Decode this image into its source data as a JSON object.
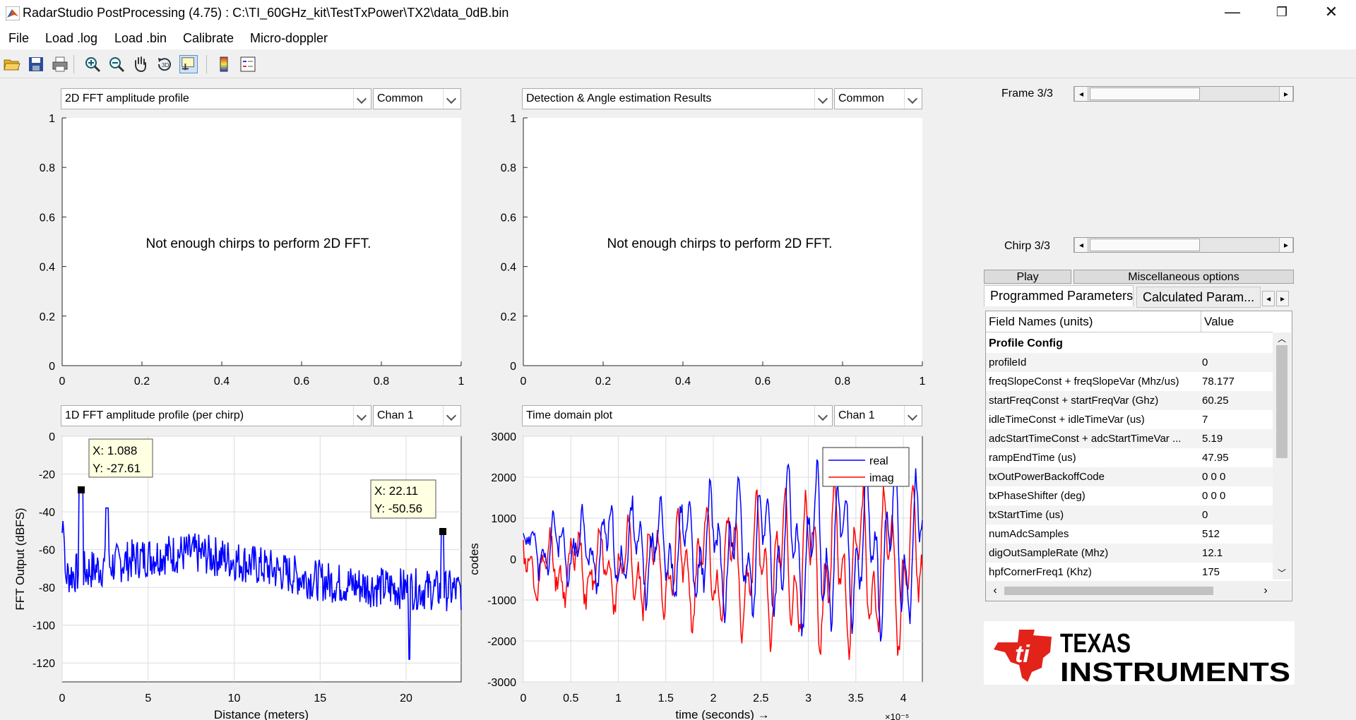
{
  "window": {
    "title": "RadarStudio PostProcessing (4.75)  : C:\\TI_60GHz_kit\\TestTxPower\\TX2\\data_0dB.bin",
    "minimize": "—",
    "restore": "❐",
    "close": "✕"
  },
  "menu": {
    "file": "File",
    "load_log": "Load .log",
    "load_bin": "Load .bin",
    "calibrate": "Calibrate",
    "micro_doppler": "Micro-doppler"
  },
  "toolbar_icons": [
    "open-folder-icon",
    "save-icon",
    "print-icon",
    "zoom-in-icon",
    "zoom-out-icon",
    "pan-hand-icon",
    "rotate-3d-icon",
    "data-cursor-icon",
    "colorbar-icon",
    "legend-icon"
  ],
  "plots": {
    "p1": {
      "dropdown": "2D FFT amplitude profile",
      "channel": "Common",
      "message": "Not enough chirps to perform 2D FFT.",
      "xticks": [
        "0",
        "0.2",
        "0.4",
        "0.6",
        "0.8",
        "1"
      ],
      "yticks": [
        "1",
        "0.8",
        "0.6",
        "0.4",
        "0.2",
        "0"
      ]
    },
    "p2": {
      "dropdown": "Detection & Angle estimation Results",
      "channel": "Common",
      "message": "Not enough chirps to perform 2D FFT.",
      "xticks": [
        "0",
        "0.2",
        "0.4",
        "0.6",
        "0.8",
        "1"
      ],
      "yticks": [
        "1",
        "0.8",
        "0.6",
        "0.4",
        "0.2",
        "0"
      ]
    },
    "p3": {
      "dropdown": "1D FFT amplitude profile (per chirp)",
      "channel": "Chan 1",
      "xticks": [
        "0",
        "5",
        "10",
        "15",
        "20"
      ],
      "yticks": [
        "0",
        "-20",
        "-40",
        "-60",
        "-80",
        "-100",
        "-120"
      ],
      "xlabel": "Distance (meters)",
      "ylabel": "FFT Output (dBFS)",
      "tip1": {
        "x": "X: 1.088",
        "y": "Y: -27.61"
      },
      "tip2": {
        "x": "X: 22.11",
        "y": "Y: -50.56"
      }
    },
    "p4": {
      "dropdown": "Time domain plot",
      "channel": "Chan 1",
      "xticks": [
        "0",
        "0.5",
        "1",
        "1.5",
        "2",
        "2.5",
        "3",
        "3.5",
        "4"
      ],
      "yticks": [
        "3000",
        "2000",
        "1000",
        "0",
        "-1000",
        "-2000",
        "-3000"
      ],
      "xlabel": "time  (seconds) →",
      "ylabel": "codes",
      "exponent": "×10⁻⁵",
      "legend": {
        "real": "real",
        "imag": "imag"
      }
    }
  },
  "right_panel": {
    "frame_label": "Frame 3/3",
    "chirp_label": "Chirp 3/3",
    "play": "Play",
    "misc": "Miscellaneous options",
    "tabs": {
      "programmed": "Programmed Parameters",
      "calculated": "Calculated Param..."
    },
    "table": {
      "headers": {
        "field": "Field Names   (units)",
        "value": "Value"
      },
      "rows": [
        {
          "field": "Profile Config",
          "value": "",
          "section": true
        },
        {
          "field": "profileId",
          "value": "0"
        },
        {
          "field": "freqSlopeConst + freqSlopeVar (Mhz/us)",
          "value": "78.177"
        },
        {
          "field": "startFreqConst + startFreqVar (Ghz)",
          "value": "60.25"
        },
        {
          "field": "idleTimeConst + idleTimeVar (us)",
          "value": "7"
        },
        {
          "field": "adcStartTimeConst + adcStartTimeVar ...",
          "value": "5.19"
        },
        {
          "field": "rampEndTime (us)",
          "value": "47.95"
        },
        {
          "field": "txOutPowerBackoffCode",
          "value": "0 0 0"
        },
        {
          "field": "txPhaseShifter (deg)",
          "value": "0 0 0"
        },
        {
          "field": "txStartTime (us)",
          "value": "0"
        },
        {
          "field": "numAdcSamples",
          "value": "512"
        },
        {
          "field": "digOutSampleRate (Mhz)",
          "value": "12.1"
        },
        {
          "field": "hpfCornerFreq1 (Khz)",
          "value": "175"
        }
      ]
    },
    "logo": {
      "line1": "TEXAS",
      "line2": "INSTRUMENTS"
    }
  },
  "chart_data": [
    {
      "type": "line",
      "title": "",
      "xlabel": "Distance (meters)",
      "ylabel": "FFT Output (dBFS)",
      "xlim": [
        0,
        23.2
      ],
      "ylim": [
        -130,
        0
      ],
      "series": [
        {
          "values": []
        }
      ],
      "annotations": [
        {
          "x": 1.088,
          "y": -27.61
        },
        {
          "x": 22.11,
          "y": -50.56
        }
      ]
    },
    {
      "type": "line",
      "title": "",
      "xlabel": "time  (seconds)",
      "ylabel": "codes",
      "xlim": [
        0,
        4.2
      ],
      "ylim": [
        -3000,
        3000
      ],
      "series": [
        {
          "name": "real",
          "color": "#0000ff"
        },
        {
          "name": "imag",
          "color": "#ff0000"
        }
      ]
    }
  ]
}
